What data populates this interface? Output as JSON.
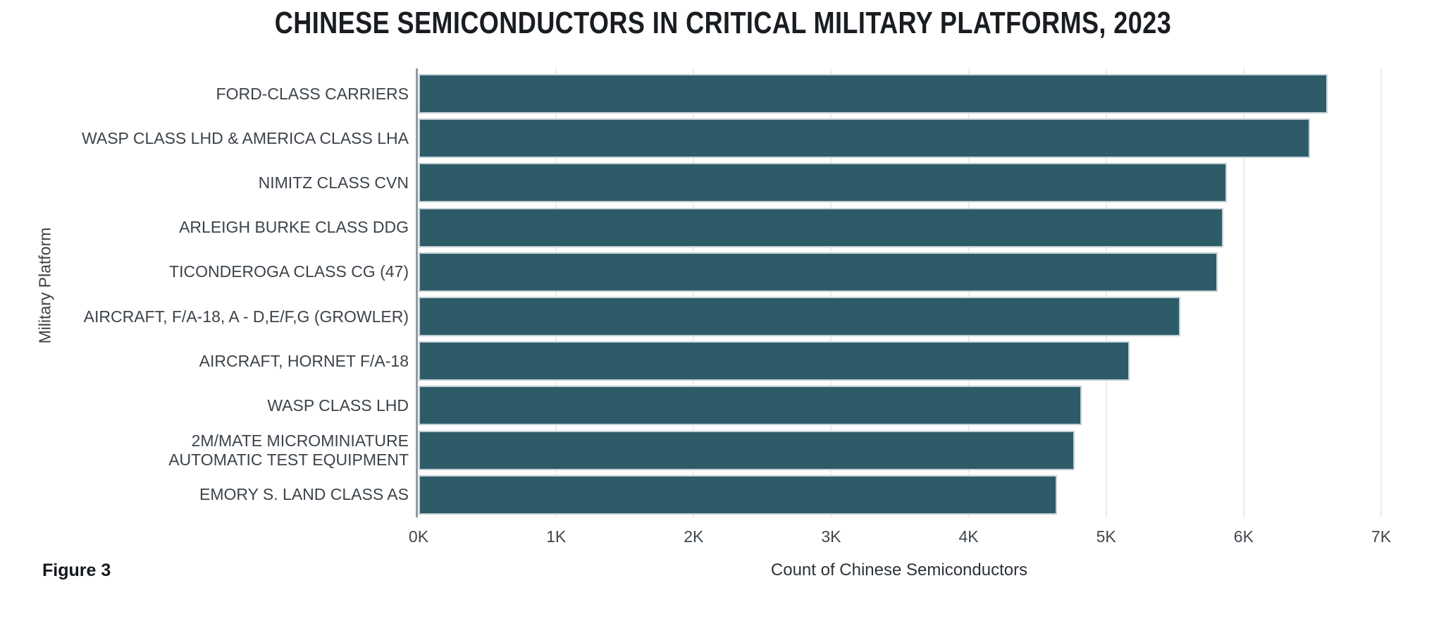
{
  "figure_label": "Figure 3",
  "chart_data": {
    "type": "bar",
    "orientation": "horizontal",
    "title": "CHINESE SEMICONDUCTORS IN CRITICAL MILITARY PLATFORMS, 2023",
    "xlabel": "Count of Chinese Semiconductors",
    "ylabel": "Military Platform",
    "xlim": [
      0,
      7000
    ],
    "grid": "vertical gridlines at each 1K, light gray",
    "legend": "none",
    "categories": [
      "FORD-CLASS CARRIERS",
      "WASP CLASS LHD & AMERICA CLASS LHA",
      "NIMITZ CLASS CVN",
      "ARLEIGH BURKE CLASS DDG",
      "TICONDEROGA CLASS CG (47)",
      "AIRCRAFT, F/A-18, A - D,E/F,G (GROWLER)",
      "AIRCRAFT, HORNET F/A-18",
      "WASP CLASS LHD",
      "2M/MATE MICROMINIATURE AUTOMATIC TEST EQUIPMENT",
      "EMORY S. LAND CLASS AS"
    ],
    "values": [
      6610,
      6480,
      5880,
      5850,
      5810,
      5540,
      5170,
      4820,
      4770,
      4640
    ],
    "bars": [
      {
        "label_lines": [
          "FORD-CLASS CARRIERS"
        ],
        "value": 6610
      },
      {
        "label_lines": [
          "WASP CLASS LHD & AMERICA CLASS LHA"
        ],
        "value": 6480
      },
      {
        "label_lines": [
          "NIMITZ CLASS CVN"
        ],
        "value": 5880
      },
      {
        "label_lines": [
          "ARLEIGH BURKE CLASS DDG"
        ],
        "value": 5850
      },
      {
        "label_lines": [
          "TICONDEROGA CLASS CG (47)"
        ],
        "value": 5810
      },
      {
        "label_lines": [
          "AIRCRAFT, F/A-18, A - D,E/F,G (GROWLER)"
        ],
        "value": 5540
      },
      {
        "label_lines": [
          "AIRCRAFT, HORNET F/A-18"
        ],
        "value": 5170
      },
      {
        "label_lines": [
          "WASP CLASS LHD"
        ],
        "value": 4820
      },
      {
        "label_lines": [
          "2M/MATE MICROMINIATURE",
          "AUTOMATIC TEST EQUIPMENT"
        ],
        "value": 4770
      },
      {
        "label_lines": [
          "EMORY S. LAND CLASS AS"
        ],
        "value": 4640
      }
    ],
    "xticks": [
      {
        "label": "0K",
        "value": 0
      },
      {
        "label": "1K",
        "value": 1000
      },
      {
        "label": "2K",
        "value": 2000
      },
      {
        "label": "3K",
        "value": 3000
      },
      {
        "label": "4K",
        "value": 4000
      },
      {
        "label": "5K",
        "value": 5000
      },
      {
        "label": "6K",
        "value": 6000
      },
      {
        "label": "7K",
        "value": 7000
      }
    ],
    "colors": {
      "bar_fill": "#2d5b68",
      "bar_border": "#c3cfd4",
      "gridline": "#ececec",
      "axis_line": "#909ba0",
      "title_text": "#191d21",
      "label_text": "#3c434a",
      "tick_text": "#40474d",
      "axis_title_text": "#3a4147",
      "figure_text": "#14181c",
      "background": "#ffffff"
    }
  }
}
